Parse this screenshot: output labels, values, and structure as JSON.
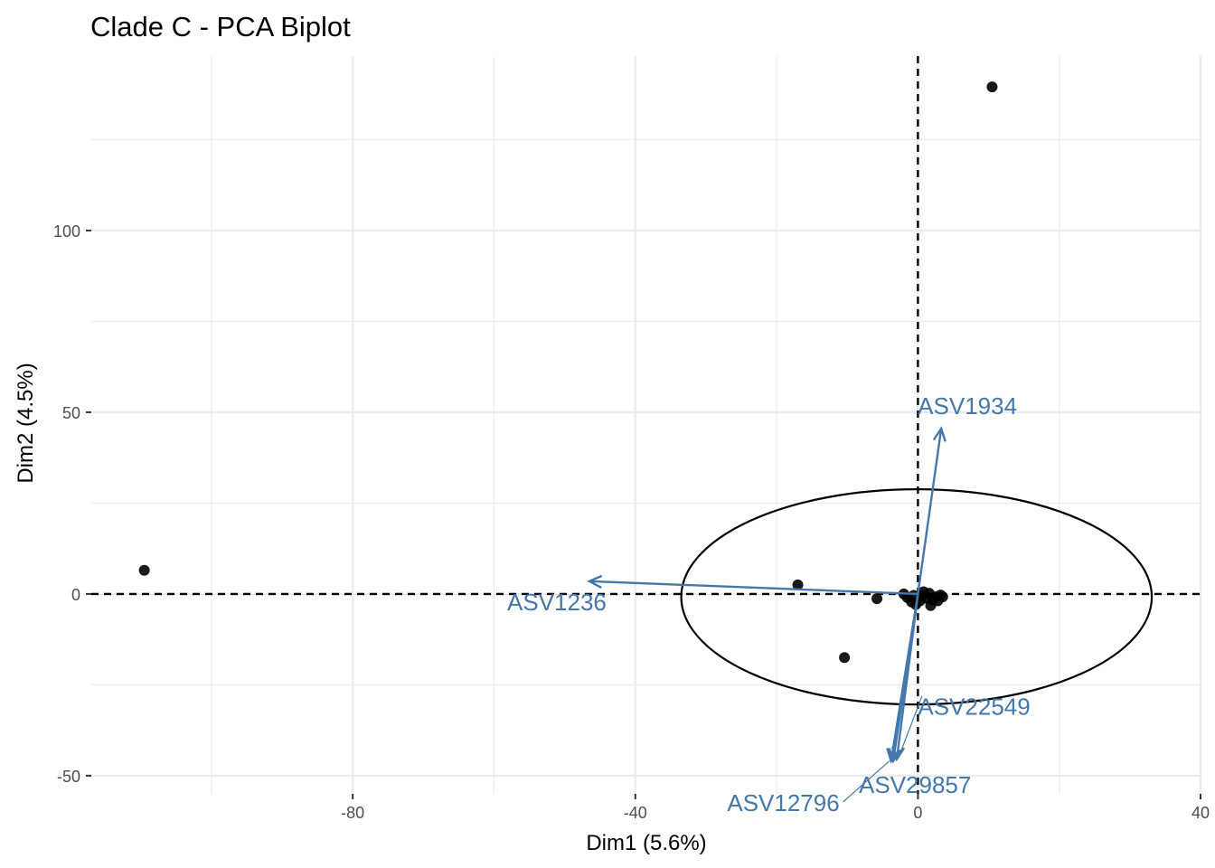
{
  "chart_data": {
    "type": "scatter",
    "title": "Clade C - PCA Biplot",
    "xlabel": "Dim1 (5.6%)",
    "ylabel": "Dim2 (4.5%)",
    "xlim": [
      -117,
      40
    ],
    "ylim": [
      -55,
      148
    ],
    "x_ticks": [
      -80,
      -40,
      0,
      40
    ],
    "y_ticks": [
      -50,
      0,
      50,
      100
    ],
    "x_minor": [
      -100,
      -60,
      -20,
      20
    ],
    "y_minor": [
      -25,
      25,
      75,
      125
    ],
    "grid": true,
    "reference_lines": {
      "x": 0,
      "y": 0,
      "style": "dashed"
    },
    "individuals": [
      {
        "x": 10.5,
        "y": 139.5
      },
      {
        "x": -109.5,
        "y": 6.5
      },
      {
        "x": -17,
        "y": 2.5
      },
      {
        "x": -5.8,
        "y": -1.3
      },
      {
        "x": -10.4,
        "y": -17.5
      },
      {
        "x": -2.0,
        "y": 0.0
      },
      {
        "x": -1.5,
        "y": -1.0
      },
      {
        "x": -0.6,
        "y": -0.4
      },
      {
        "x": -0.3,
        "y": -2.9
      },
      {
        "x": 0.3,
        "y": -1.9
      },
      {
        "x": 0.8,
        "y": 0.6
      },
      {
        "x": 1.2,
        "y": -1.1
      },
      {
        "x": 1.6,
        "y": 0.2
      },
      {
        "x": 2.1,
        "y": -1.6
      },
      {
        "x": 2.5,
        "y": -0.8
      },
      {
        "x": 1.8,
        "y": -3.2
      },
      {
        "x": 0.5,
        "y": -0.5
      },
      {
        "x": 3.2,
        "y": -0.3
      },
      {
        "x": 3.5,
        "y": -0.8
      },
      {
        "x": -0.9,
        "y": -2.2
      },
      {
        "x": 2.8,
        "y": -1.9
      }
    ],
    "confidence_ellipse": {
      "cx": -0.2,
      "cy": -0.8,
      "rx": 33.3,
      "ry": 29.6
    },
    "variables": [
      {
        "name": "ASV1934",
        "x": 3.3,
        "y": 45.5
      },
      {
        "name": "ASV1236",
        "x": -46.5,
        "y": 3.5
      },
      {
        "name": "ASV22549",
        "x": -3.0,
        "y": -45.5
      },
      {
        "name": "ASV29857",
        "x": -3.5,
        "y": -46.0
      },
      {
        "name": "ASV12796",
        "x": -3.8,
        "y": -46.0
      }
    ],
    "colors": {
      "points": "#000000",
      "variables": "#4477aa",
      "grid": "#ebebeb",
      "ellipse": "#000000"
    }
  }
}
